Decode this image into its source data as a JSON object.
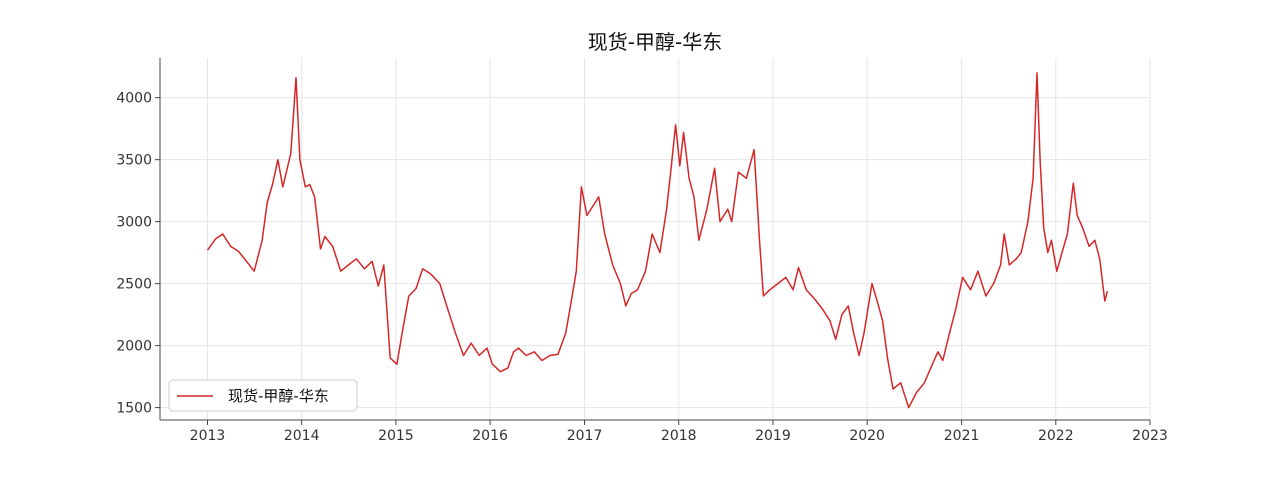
{
  "chart_data": {
    "type": "line",
    "title": "现货-甲醇-华东",
    "xlabel": "",
    "ylabel": "",
    "x_ticks": [
      "2013",
      "2014",
      "2015",
      "2016",
      "2017",
      "2018",
      "2019",
      "2020",
      "2021",
      "2022",
      "2023"
    ],
    "y_ticks": [
      1500,
      2000,
      2500,
      3000,
      3500,
      4000
    ],
    "xlim": [
      "2012-07-01",
      "2023-01-01"
    ],
    "ylim": [
      1400,
      4320
    ],
    "grid": true,
    "legend_position": "bottom-left",
    "series": [
      {
        "name": "现货-甲醇-华东",
        "color": "#d62728",
        "points": [
          [
            "2013-01-01",
            2770
          ],
          [
            "2013-02-01",
            2860
          ],
          [
            "2013-03-01",
            2900
          ],
          [
            "2013-04-01",
            2800
          ],
          [
            "2013-05-01",
            2760
          ],
          [
            "2013-06-01",
            2680
          ],
          [
            "2013-07-01",
            2600
          ],
          [
            "2013-08-01",
            2850
          ],
          [
            "2013-08-20",
            3150
          ],
          [
            "2013-09-10",
            3300
          ],
          [
            "2013-10-01",
            3500
          ],
          [
            "2013-10-20",
            3280
          ],
          [
            "2013-11-20",
            3550
          ],
          [
            "2013-12-10",
            4160
          ],
          [
            "2013-12-25",
            3500
          ],
          [
            "2014-01-15",
            3280
          ],
          [
            "2014-02-01",
            3300
          ],
          [
            "2014-02-20",
            3200
          ],
          [
            "2014-03-15",
            2780
          ],
          [
            "2014-04-01",
            2880
          ],
          [
            "2014-05-01",
            2800
          ],
          [
            "2014-06-01",
            2600
          ],
          [
            "2014-07-01",
            2650
          ],
          [
            "2014-08-01",
            2700
          ],
          [
            "2014-09-01",
            2620
          ],
          [
            "2014-10-01",
            2680
          ],
          [
            "2014-10-25",
            2480
          ],
          [
            "2014-11-15",
            2650
          ],
          [
            "2014-12-10",
            1900
          ],
          [
            "2015-01-05",
            1850
          ],
          [
            "2015-01-25",
            2100
          ],
          [
            "2015-02-20",
            2400
          ],
          [
            "2015-03-20",
            2460
          ],
          [
            "2015-04-15",
            2620
          ],
          [
            "2015-05-15",
            2580
          ],
          [
            "2015-06-20",
            2500
          ],
          [
            "2015-07-20",
            2300
          ],
          [
            "2015-08-20",
            2100
          ],
          [
            "2015-09-20",
            1920
          ],
          [
            "2015-10-20",
            2020
          ],
          [
            "2015-11-20",
            1920
          ],
          [
            "2015-12-20",
            1980
          ],
          [
            "2016-01-10",
            1850
          ],
          [
            "2016-02-10",
            1790
          ],
          [
            "2016-03-10",
            1820
          ],
          [
            "2016-04-01",
            1950
          ],
          [
            "2016-04-20",
            1980
          ],
          [
            "2016-05-20",
            1920
          ],
          [
            "2016-06-20",
            1950
          ],
          [
            "2016-07-20",
            1880
          ],
          [
            "2016-08-20",
            1920
          ],
          [
            "2016-09-20",
            1930
          ],
          [
            "2016-10-20",
            2100
          ],
          [
            "2016-11-10",
            2350
          ],
          [
            "2016-11-30",
            2600
          ],
          [
            "2016-12-20",
            3280
          ],
          [
            "2017-01-10",
            3050
          ],
          [
            "2017-02-10",
            3150
          ],
          [
            "2017-02-25",
            3200
          ],
          [
            "2017-03-20",
            2900
          ],
          [
            "2017-04-20",
            2650
          ],
          [
            "2017-05-20",
            2500
          ],
          [
            "2017-06-10",
            2320
          ],
          [
            "2017-07-01",
            2420
          ],
          [
            "2017-07-25",
            2450
          ],
          [
            "2017-08-25",
            2600
          ],
          [
            "2017-09-20",
            2900
          ],
          [
            "2017-10-20",
            2750
          ],
          [
            "2017-11-15",
            3100
          ],
          [
            "2017-12-01",
            3400
          ],
          [
            "2017-12-20",
            3780
          ],
          [
            "2018-01-05",
            3450
          ],
          [
            "2018-01-20",
            3720
          ],
          [
            "2018-02-10",
            3350
          ],
          [
            "2018-03-01",
            3200
          ],
          [
            "2018-03-20",
            2850
          ],
          [
            "2018-04-20",
            3100
          ],
          [
            "2018-05-20",
            3430
          ],
          [
            "2018-06-10",
            3000
          ],
          [
            "2018-07-10",
            3100
          ],
          [
            "2018-07-25",
            3000
          ],
          [
            "2018-08-20",
            3400
          ],
          [
            "2018-09-20",
            3350
          ],
          [
            "2018-10-20",
            3580
          ],
          [
            "2018-11-10",
            2850
          ],
          [
            "2018-11-25",
            2400
          ],
          [
            "2018-12-20",
            2450
          ],
          [
            "2019-01-20",
            2500
          ],
          [
            "2019-02-20",
            2550
          ],
          [
            "2019-03-20",
            2450
          ],
          [
            "2019-04-10",
            2630
          ],
          [
            "2019-05-10",
            2450
          ],
          [
            "2019-06-10",
            2380
          ],
          [
            "2019-07-10",
            2300
          ],
          [
            "2019-08-10",
            2200
          ],
          [
            "2019-09-01",
            2050
          ],
          [
            "2019-09-25",
            2250
          ],
          [
            "2019-10-20",
            2320
          ],
          [
            "2019-11-10",
            2100
          ],
          [
            "2019-12-01",
            1920
          ],
          [
            "2019-12-20",
            2100
          ],
          [
            "2020-01-20",
            2500
          ],
          [
            "2020-02-10",
            2350
          ],
          [
            "2020-03-01",
            2200
          ],
          [
            "2020-03-20",
            1900
          ],
          [
            "2020-04-10",
            1650
          ],
          [
            "2020-05-10",
            1700
          ],
          [
            "2020-06-10",
            1500
          ],
          [
            "2020-07-10",
            1620
          ],
          [
            "2020-08-10",
            1700
          ],
          [
            "2020-09-10",
            1850
          ],
          [
            "2020-10-01",
            1950
          ],
          [
            "2020-10-20",
            1880
          ],
          [
            "2020-11-15",
            2100
          ],
          [
            "2020-12-10",
            2300
          ],
          [
            "2021-01-05",
            2550
          ],
          [
            "2021-02-05",
            2450
          ],
          [
            "2021-03-05",
            2600
          ],
          [
            "2021-04-05",
            2400
          ],
          [
            "2021-05-05",
            2500
          ],
          [
            "2021-06-01",
            2650
          ],
          [
            "2021-06-15",
            2900
          ],
          [
            "2021-07-05",
            2650
          ],
          [
            "2021-08-01",
            2700
          ],
          [
            "2021-08-20",
            2750
          ],
          [
            "2021-09-15",
            3000
          ],
          [
            "2021-10-05",
            3350
          ],
          [
            "2021-10-20",
            4200
          ],
          [
            "2021-11-01",
            3500
          ],
          [
            "2021-11-15",
            2950
          ],
          [
            "2021-12-01",
            2750
          ],
          [
            "2021-12-15",
            2850
          ],
          [
            "2022-01-05",
            2600
          ],
          [
            "2022-01-25",
            2750
          ],
          [
            "2022-02-15",
            2900
          ],
          [
            "2022-03-10",
            3310
          ],
          [
            "2022-03-25",
            3050
          ],
          [
            "2022-04-15",
            2950
          ],
          [
            "2022-05-10",
            2800
          ],
          [
            "2022-06-01",
            2850
          ],
          [
            "2022-06-20",
            2700
          ],
          [
            "2022-07-10",
            2360
          ],
          [
            "2022-07-20",
            2440
          ]
        ]
      }
    ]
  }
}
